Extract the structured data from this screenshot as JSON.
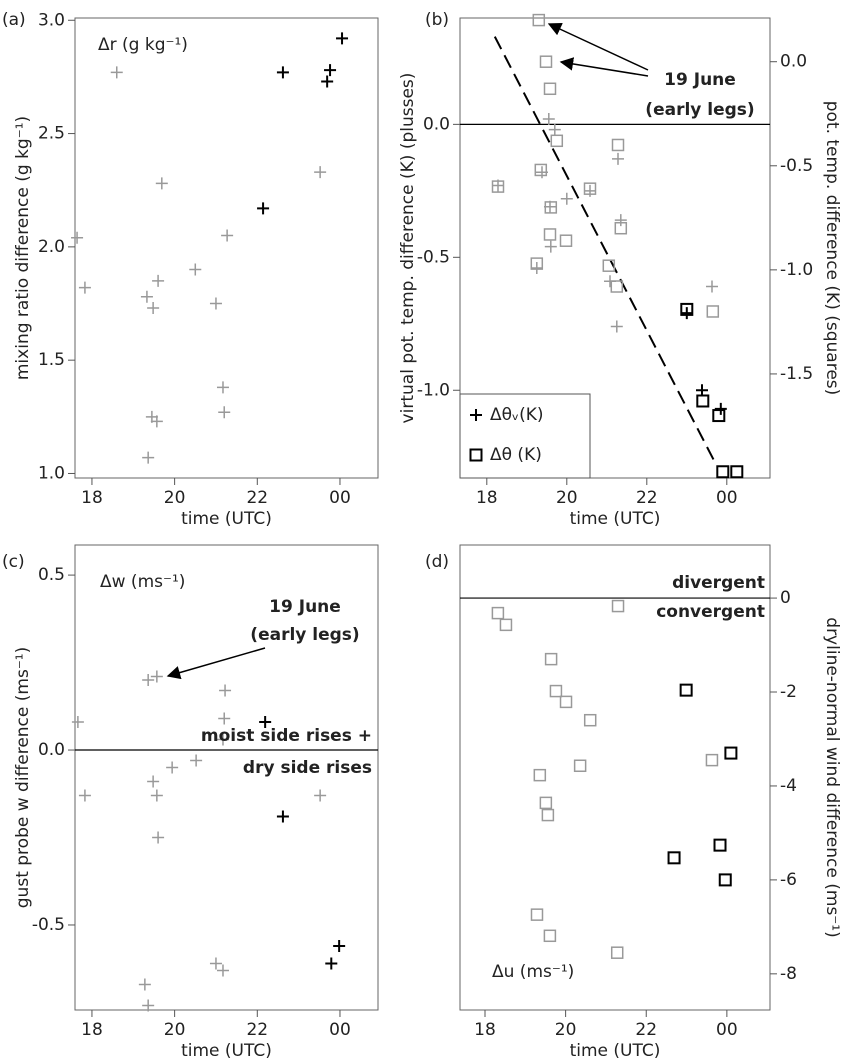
{
  "chart_data": [
    {
      "type": "scatter",
      "panel_label": "(a)",
      "xlabel": "time (UTC)",
      "ylabel": "mixing ratio difference (g kg⁻¹)",
      "xlim": [
        17.59,
        24.92
      ],
      "xticks": [
        18,
        20,
        22,
        {
          "value": 24,
          "label": "00"
        }
      ],
      "ylim": [
        0.98,
        3.01
      ],
      "yticks": [
        {
          "value": 1,
          "label": "1.0"
        },
        1.5,
        {
          "value": 2,
          "label": "2.0"
        },
        2.5,
        {
          "value": 3,
          "label": "3.0"
        }
      ],
      "annotations": [
        "Δr (g kg⁻¹)"
      ],
      "series": [
        {
          "marker": "plus",
          "color": "#999999",
          "x": [
            17.64,
            17.83,
            18.6,
            19.69,
            19.33,
            19.48,
            19.6,
            20.5,
            21.27,
            21.0,
            21.17,
            21.2,
            19.36,
            19.45,
            19.57,
            23.52
          ],
          "values": [
            2.04,
            1.82,
            2.77,
            2.28,
            1.78,
            1.73,
            1.85,
            1.9,
            2.05,
            1.75,
            1.38,
            1.27,
            1.07,
            1.25,
            1.23,
            2.33
          ]
        },
        {
          "marker": "plus",
          "color": "#000000",
          "x": [
            22.62,
            22.14,
            23.69,
            23.76,
            24.05
          ],
          "values": [
            2.77,
            2.17,
            2.73,
            2.78,
            2.92
          ]
        }
      ]
    },
    {
      "type": "scatter",
      "panel_label": "(b)",
      "xlabel": "time (UTC)",
      "ylabel": "virtual pot. temp. difference (K) (plusses)",
      "y2label": "pot. temp. difference (K) (squares)",
      "xlim": [
        17.33,
        25.08
      ],
      "xticks": [
        18,
        20,
        22,
        {
          "value": 24,
          "label": "00"
        }
      ],
      "ylim": [
        -1.33,
        0.4
      ],
      "yticks": [
        {
          "value": -1,
          "label": "-1.0"
        },
        -0.5,
        {
          "value": 0,
          "label": "0.0"
        }
      ],
      "y2lim": [
        -2.0,
        0.21
      ],
      "y2ticks": [
        -1.5,
        {
          "value": -1,
          "label": "-1.0"
        },
        -0.5,
        {
          "value": 0,
          "label": "0.0"
        }
      ],
      "hline": 0,
      "fit_line": {
        "style": "dashed",
        "x": [
          18.2,
          23.7
        ],
        "values": [
          0.33,
          -1.27
        ]
      },
      "annotations": [
        "19 June",
        "(early legs)"
      ],
      "legend": {
        "position": "lower left",
        "entries": [
          {
            "marker": "plus",
            "label": "Δθᵥ(K)"
          },
          {
            "marker": "square",
            "label": "Δθ (K)"
          }
        ]
      },
      "series": [
        {
          "marker": "plus",
          "color": "#999999",
          "x": [
            18.28,
            19.25,
            19.38,
            19.55,
            19.7,
            19.6,
            20.0,
            20.58,
            21.28,
            21.35,
            21.08,
            21.25,
            23.63,
            19.58
          ],
          "values": [
            -0.23,
            -0.54,
            -0.18,
            0.02,
            -0.02,
            -0.46,
            -0.28,
            -0.25,
            -0.13,
            -0.36,
            -0.59,
            -0.76,
            -0.61,
            -0.31
          ]
        },
        {
          "marker": "plus",
          "color": "#000000",
          "x": [
            23.0,
            23.38,
            23.85
          ],
          "values": [
            -0.71,
            -1.0,
            -1.07
          ]
        },
        {
          "marker": "square",
          "color": "#999999",
          "axis": "y2",
          "x": [
            18.28,
            19.25,
            19.3,
            19.48,
            19.58,
            19.75,
            19.35,
            19.6,
            19.98,
            19.58,
            20.58,
            21.28,
            21.35,
            21.05,
            21.25,
            23.65
          ],
          "values": [
            -0.6,
            -0.97,
            0.2,
            0.0,
            -0.13,
            -0.38,
            -0.52,
            -0.7,
            -0.86,
            -0.83,
            -0.61,
            -0.4,
            -0.8,
            -0.98,
            -1.08,
            -1.2
          ]
        },
        {
          "marker": "square",
          "color": "#000000",
          "axis": "y2",
          "x": [
            23.0,
            23.4,
            23.8,
            23.9,
            24.25
          ],
          "values": [
            -1.19,
            -1.63,
            -1.7,
            -1.97,
            -1.97
          ]
        }
      ]
    },
    {
      "type": "scatter",
      "panel_label": "(c)",
      "xlabel": "time (UTC)",
      "ylabel": "gust probe w difference (ms⁻¹)",
      "xlim": [
        17.59,
        24.92
      ],
      "xticks": [
        18,
        20,
        22,
        {
          "value": 24,
          "label": "00"
        }
      ],
      "ylim": [
        -0.743,
        0.586
      ],
      "yticks": [
        -0.5,
        {
          "value": 0,
          "label": "0.0"
        },
        0.5
      ],
      "hline": 0,
      "annotations": [
        "Δw (ms⁻¹)",
        "19 June",
        "(early legs)",
        "moist side rises +",
        "dry side rises"
      ],
      "series": [
        {
          "marker": "plus",
          "color": "#999999",
          "x": [
            17.66,
            17.83,
            19.36,
            19.57,
            19.48,
            19.57,
            19.6,
            19.94,
            20.52,
            21.17,
            21.2,
            21.22,
            21.0,
            21.17,
            23.52,
            19.28,
            19.36
          ],
          "values": [
            0.08,
            -0.13,
            0.2,
            0.21,
            -0.09,
            -0.13,
            -0.25,
            -0.05,
            -0.03,
            0.03,
            0.09,
            0.17,
            -0.61,
            -0.63,
            -0.13,
            -0.67,
            -0.73
          ]
        },
        {
          "marker": "plus",
          "color": "#000000",
          "x": [
            22.19,
            22.62,
            23.79,
            23.98
          ],
          "values": [
            0.08,
            -0.19,
            -0.61,
            -0.56
          ]
        }
      ]
    },
    {
      "type": "scatter",
      "panel_label": "(d)",
      "xlabel": "time (UTC)",
      "ylabel": "dryline-normal wind difference (ms⁻¹)",
      "y_axis_side": "right",
      "xlim": [
        17.38,
        25.07
      ],
      "xticks": [
        18,
        20,
        22,
        {
          "value": 24,
          "label": "00"
        }
      ],
      "ylim": [
        -8.77,
        1.13
      ],
      "yticks": [
        -8,
        -6,
        -4,
        -2,
        0
      ],
      "hline": 0,
      "annotations": [
        "divergent",
        "convergent",
        "Δu (ms⁻¹)"
      ],
      "series": [
        {
          "marker": "square",
          "color": "#999999",
          "x": [
            18.32,
            18.52,
            19.64,
            19.76,
            20.01,
            20.61,
            19.36,
            19.51,
            19.56,
            20.36,
            21.3,
            23.63,
            19.29,
            19.61,
            21.28
          ],
          "values": [
            -0.32,
            -0.57,
            -1.3,
            -1.98,
            -2.21,
            -2.6,
            -3.77,
            -4.36,
            -4.62,
            -3.57,
            -0.17,
            -3.45,
            -6.74,
            -7.19,
            -7.55
          ]
        },
        {
          "marker": "square",
          "color": "#000000",
          "x": [
            22.99,
            22.69,
            23.83,
            23.96,
            24.1
          ],
          "values": [
            -1.96,
            -5.53,
            -5.26,
            -6.0,
            -3.3
          ]
        }
      ]
    }
  ]
}
